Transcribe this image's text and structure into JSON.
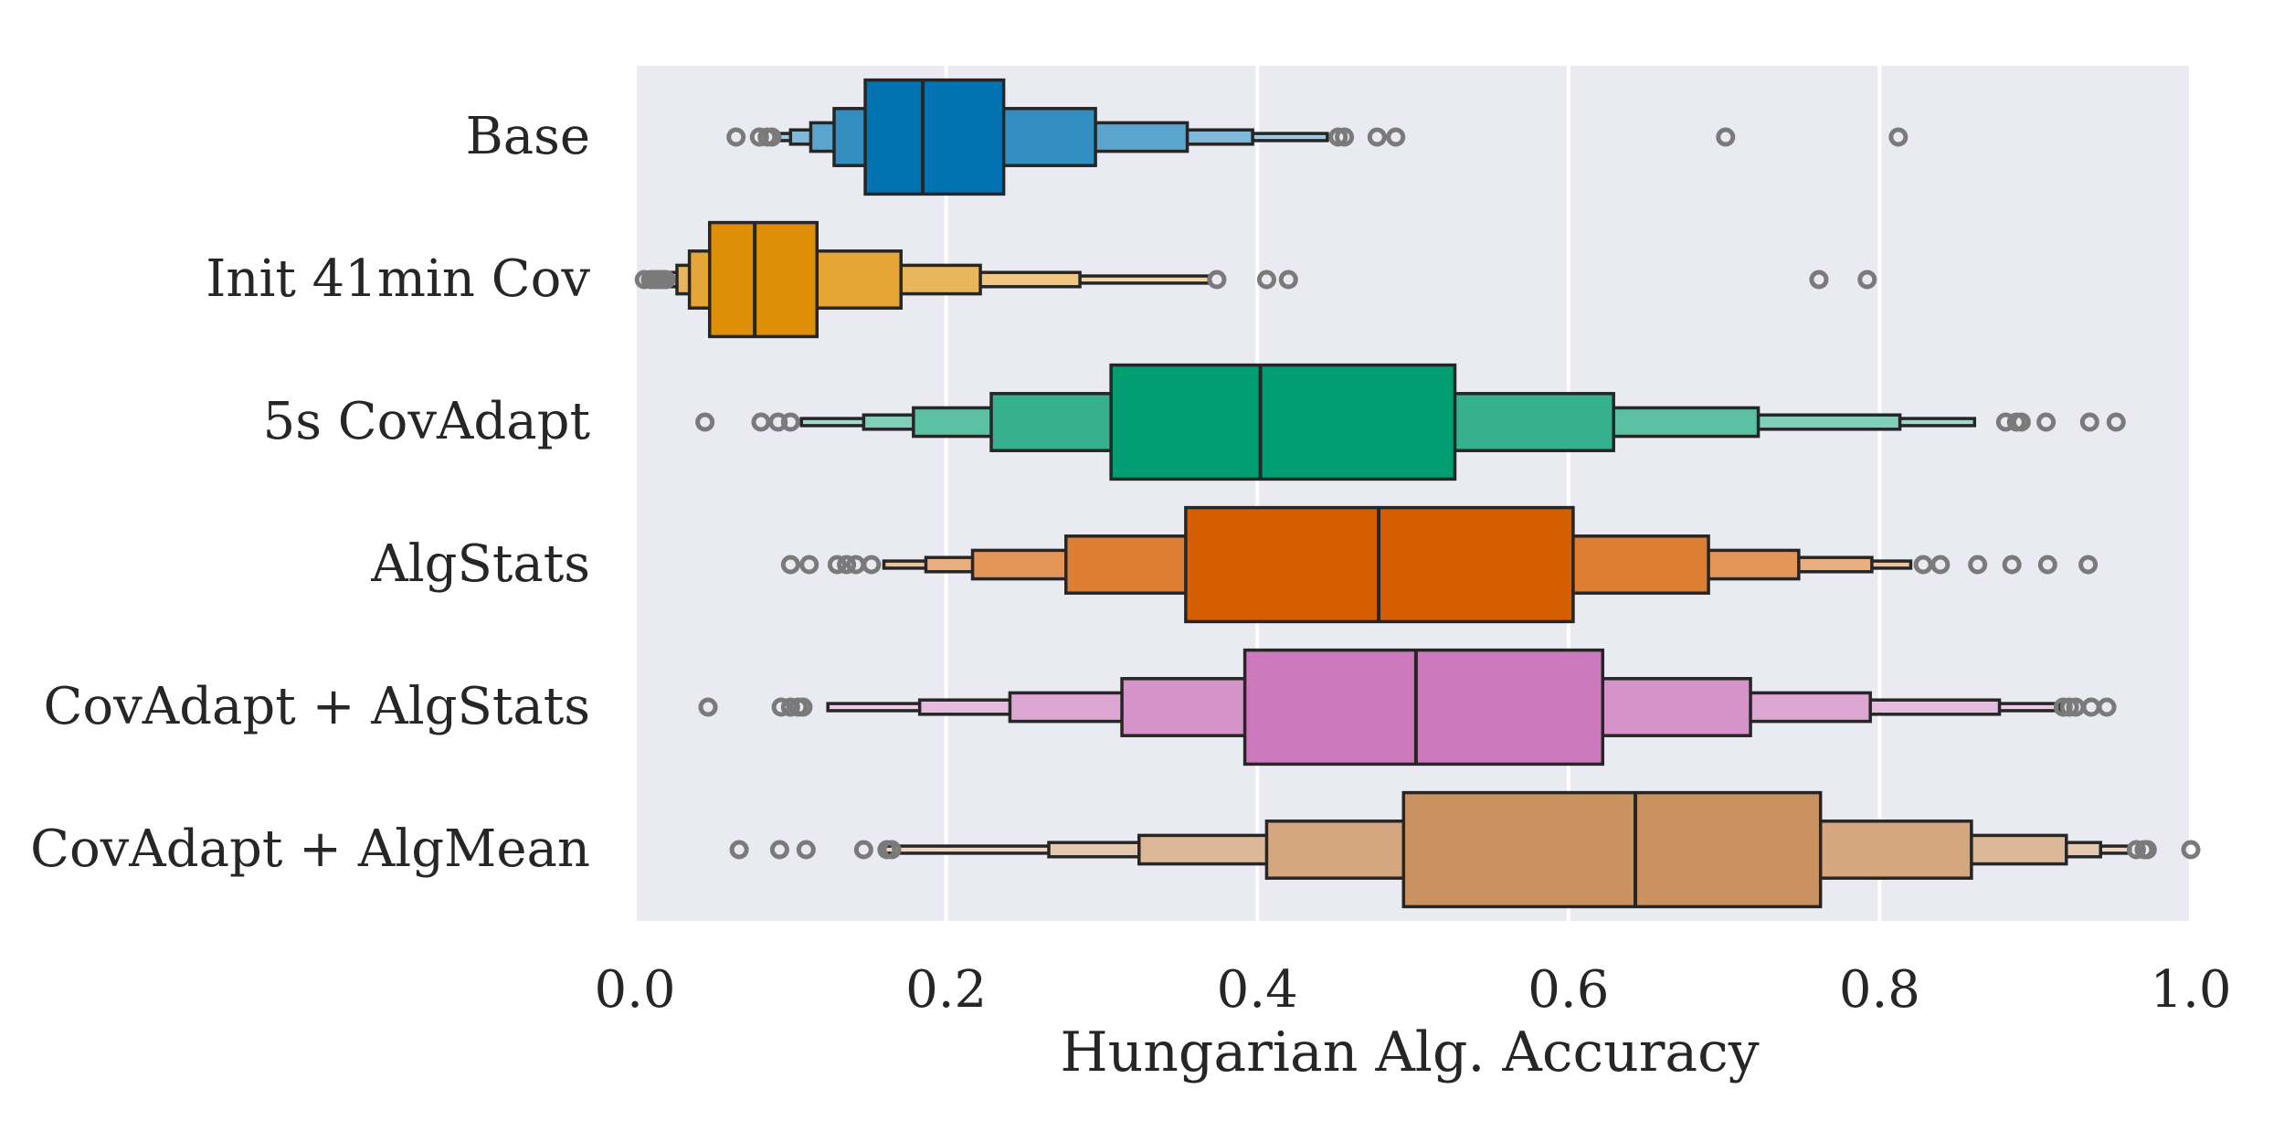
{
  "chart_data": {
    "type": "boxen",
    "orientation": "horizontal",
    "xlabel": "Hungarian Alg. Accuracy",
    "xlim": [
      0.0,
      1.0
    ],
    "xticks": [
      "0.0",
      "0.2",
      "0.4",
      "0.6",
      "0.8",
      "1.0"
    ],
    "grid": true,
    "background_color": "#eaeaf2",
    "categories": [
      {
        "name": "Base",
        "color": "#0173b2",
        "median": 0.185,
        "levels": [
          [
            0.148,
            0.237
          ],
          [
            0.128,
            0.296
          ],
          [
            0.113,
            0.355
          ],
          [
            0.1,
            0.397
          ],
          [
            0.09,
            0.445
          ]
        ],
        "outliers": [
          0.065,
          0.08,
          0.085,
          0.088,
          0.452,
          0.456,
          0.477,
          0.489,
          0.701,
          0.812
        ]
      },
      {
        "name": "Init 41min Cov",
        "color": "#de8f05",
        "median": 0.077,
        "levels": [
          [
            0.048,
            0.117
          ],
          [
            0.035,
            0.171
          ],
          [
            0.027,
            0.222
          ],
          [
            0.022,
            0.286
          ],
          [
            0.02,
            0.369
          ]
        ],
        "outliers": [
          0.006,
          0.01,
          0.012,
          0.014,
          0.016,
          0.018,
          0.02,
          0.374,
          0.406,
          0.42,
          0.761,
          0.792
        ]
      },
      {
        "name": "5s CovAdapt",
        "color": "#029e73",
        "median": 0.402,
        "levels": [
          [
            0.306,
            0.527
          ],
          [
            0.229,
            0.629
          ],
          [
            0.179,
            0.722
          ],
          [
            0.147,
            0.813
          ],
          [
            0.107,
            0.861
          ]
        ],
        "outliers": [
          0.045,
          0.081,
          0.092,
          0.1,
          0.881,
          0.888,
          0.891,
          0.907,
          0.935,
          0.952
        ]
      },
      {
        "name": "AlgStats",
        "color": "#d55e00",
        "median": 0.478,
        "levels": [
          [
            0.354,
            0.603
          ],
          [
            0.277,
            0.69
          ],
          [
            0.217,
            0.748
          ],
          [
            0.187,
            0.795
          ],
          [
            0.16,
            0.82
          ]
        ],
        "outliers": [
          0.1,
          0.112,
          0.13,
          0.136,
          0.142,
          0.152,
          0.828,
          0.839,
          0.863,
          0.885,
          0.908,
          0.934
        ]
      },
      {
        "name": "CovAdapt + AlgStats",
        "color": "#cc78bc",
        "median": 0.502,
        "levels": [
          [
            0.392,
            0.622
          ],
          [
            0.313,
            0.717
          ],
          [
            0.241,
            0.794
          ],
          [
            0.183,
            0.877
          ],
          [
            0.124,
            0.916
          ]
        ],
        "outliers": [
          0.047,
          0.094,
          0.1,
          0.105,
          0.108,
          0.918,
          0.922,
          0.926,
          0.936,
          0.946
        ]
      },
      {
        "name": "CovAdapt + AlgMean",
        "color": "#ca9161",
        "median": 0.643,
        "levels": [
          [
            0.494,
            0.762
          ],
          [
            0.406,
            0.859
          ],
          [
            0.324,
            0.92
          ],
          [
            0.266,
            0.942
          ],
          [
            0.16,
            0.961
          ]
        ],
        "outliers": [
          0.067,
          0.093,
          0.11,
          0.147,
          0.162,
          0.165,
          0.965,
          0.97,
          0.972,
          1.0
        ]
      }
    ]
  }
}
